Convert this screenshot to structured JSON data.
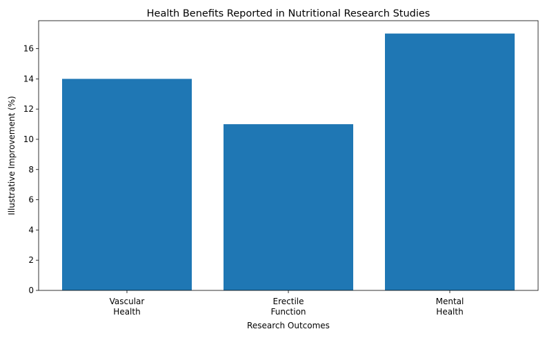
{
  "chart_data": {
    "type": "bar",
    "title": "Health Benefits Reported in Nutritional Research Studies",
    "xlabel": "Research Outcomes",
    "ylabel": "Illustrative Improvement (%)",
    "categories": [
      [
        "Vascular",
        "Health"
      ],
      [
        "Erectile",
        "Function"
      ],
      [
        "Mental",
        "Health"
      ]
    ],
    "values": [
      14,
      11,
      17
    ],
    "ylim": [
      0,
      17.85
    ],
    "yticks": [
      0,
      2,
      4,
      6,
      8,
      10,
      12,
      14,
      16
    ],
    "bar_color": "#1f77b4",
    "grid": false,
    "legend": "none"
  }
}
